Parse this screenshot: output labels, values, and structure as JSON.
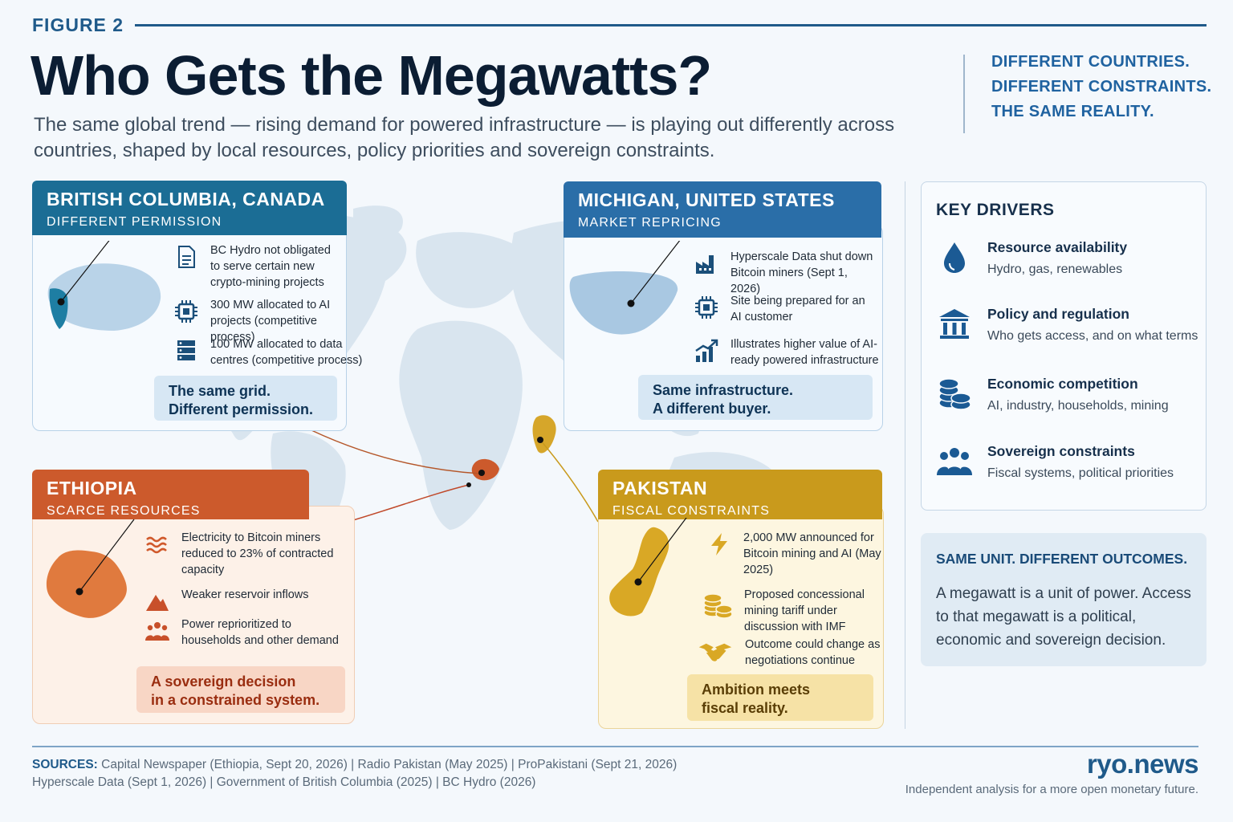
{
  "header": {
    "figure_label": "FIGURE 2",
    "title": "Who Gets the Megawatts?",
    "subtitle": "The same global trend — rising demand for powered infrastructure — is playing out differently across countries, shaped by local resources, policy priorities and sovereign constraints.",
    "tagline": [
      "DIFFERENT COUNTRIES.",
      "DIFFERENT CONSTRAINTS.",
      "THE SAME REALITY."
    ]
  },
  "regions": {
    "bc": {
      "name": "BRITISH COLUMBIA, CANADA",
      "subtitle": "DIFFERENT PERMISSION",
      "items": [
        {
          "icon": "document-icon",
          "text": "BC Hydro not obligated to serve certain new crypto-mining projects"
        },
        {
          "icon": "chip-icon",
          "text": "300 MW allocated to AI projects (competitive process)"
        },
        {
          "icon": "server-icon",
          "text": "100 MW allocated to data centres (competitive process)"
        }
      ],
      "callout": [
        "The same grid.",
        "Different permission."
      ],
      "color": "#1b6d95"
    },
    "michigan": {
      "name": "MICHIGAN, UNITED STATES",
      "subtitle": "MARKET REPRICING",
      "items": [
        {
          "icon": "factory-icon",
          "text": "Hyperscale Data shut down Bitcoin miners (Sept 1, 2026)"
        },
        {
          "icon": "chip-icon",
          "text": "Site being prepared for an AI customer"
        },
        {
          "icon": "growth-chart-icon",
          "text": "Illustrates higher value of AI-ready powered infrastructure"
        }
      ],
      "callout": [
        "Same infrastructure.",
        "A different buyer."
      ],
      "color": "#2a6ea8"
    },
    "ethiopia": {
      "name": "ETHIOPIA",
      "subtitle": "SCARCE RESOURCES",
      "items": [
        {
          "icon": "water-waves-icon",
          "text": "Electricity to Bitcoin miners reduced to 23% of contracted capacity"
        },
        {
          "icon": "mountain-icon",
          "text": "Weaker reservoir inflows"
        },
        {
          "icon": "people-icon",
          "text": "Power reprioritized to households and other demand"
        }
      ],
      "callout": [
        "A sovereign decision",
        "in a constrained system."
      ],
      "color": "#cc5a2c"
    },
    "pakistan": {
      "name": "PAKISTAN",
      "subtitle": "FISCAL CONSTRAINTS",
      "items": [
        {
          "icon": "lightning-icon",
          "text": "2,000 MW announced for Bitcoin mining and AI (May 2025)"
        },
        {
          "icon": "coins-icon",
          "text": "Proposed concessional mining tariff under discussion with IMF"
        },
        {
          "icon": "handshake-icon",
          "text": "Outcome could change as negotiations continue"
        }
      ],
      "callout": [
        "Ambition meets",
        "fiscal reality."
      ],
      "color": "#c99a1c"
    }
  },
  "key_drivers": {
    "title": "KEY DRIVERS",
    "items": [
      {
        "icon": "water-drop-icon",
        "heading": "Resource availability",
        "desc": "Hydro, gas, renewables"
      },
      {
        "icon": "government-building-icon",
        "heading": "Policy and regulation",
        "desc": "Who gets access, and on what terms"
      },
      {
        "icon": "database-icon",
        "heading": "Economic competition",
        "desc": "AI, industry, households, mining"
      },
      {
        "icon": "people-icon",
        "heading": "Sovereign constraints",
        "desc": "Fiscal systems, political priorities"
      }
    ]
  },
  "same_unit": {
    "title": "SAME UNIT. DIFFERENT OUTCOMES.",
    "text": "A megawatt is a unit of power. Access to that megawatt is a political, economic and sovereign decision."
  },
  "footer": {
    "sources_label": "SOURCES:",
    "sources_line1": "Capital Newspaper (Ethiopia, Sept 20, 2026)  |  Radio Pakistan (May 2025)  |  ProPakistani (Sept 21, 2026)",
    "sources_line2": "Hyperscale Data (Sept 1, 2026)  |  Government of British Columbia (2025)  |  BC Hydro (2026)",
    "brand": "ryo.news",
    "brand_tagline": "Independent analysis for a more open monetary future."
  }
}
